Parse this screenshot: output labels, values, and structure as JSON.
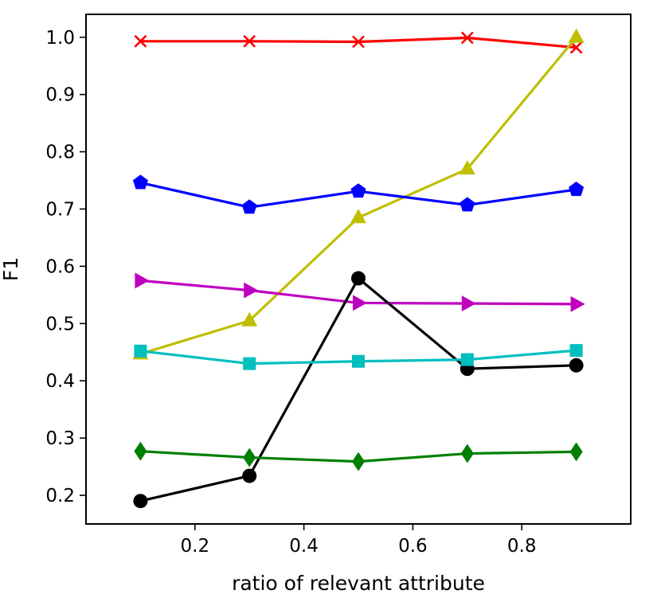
{
  "chart_data": {
    "type": "line",
    "title": "",
    "xlabel": "ratio of relevant attribute",
    "ylabel": "F1",
    "xlim": [
      0.0,
      1.0
    ],
    "ylim": [
      0.15,
      1.04
    ],
    "xticks": [
      0.2,
      0.4,
      0.6,
      0.8
    ],
    "xtick_labels": [
      "0.2",
      "0.4",
      "0.6",
      "0.8"
    ],
    "yticks": [
      0.2,
      0.3,
      0.4,
      0.5,
      0.6,
      0.7,
      0.8,
      0.9,
      1.0
    ],
    "ytick_labels": [
      "0.2",
      "0.3",
      "0.4",
      "0.5",
      "0.6",
      "0.7",
      "0.8",
      "0.9",
      "1.0"
    ],
    "grid": false,
    "x": [
      0.1,
      0.3,
      0.5,
      0.7,
      0.9
    ],
    "series": [
      {
        "id": "red-x",
        "color": "#ff0000",
        "marker": "x",
        "values": [
          0.993,
          0.993,
          0.992,
          0.999,
          0.982
        ]
      },
      {
        "id": "yellow-triangle",
        "color": "#bfbf00",
        "marker": "triangle-up",
        "values": [
          0.447,
          0.505,
          0.685,
          0.77,
          1.0
        ]
      },
      {
        "id": "blue-pentagon",
        "color": "#0000ff",
        "marker": "pentagon",
        "values": [
          0.746,
          0.703,
          0.731,
          0.707,
          0.734
        ]
      },
      {
        "id": "magenta-triangle-right",
        "color": "#bf00bf",
        "marker": "triangle-right",
        "values": [
          0.575,
          0.558,
          0.536,
          0.535,
          0.534
        ]
      },
      {
        "id": "black-circle",
        "color": "#000000",
        "marker": "circle",
        "values": [
          0.19,
          0.234,
          0.579,
          0.421,
          0.427
        ]
      },
      {
        "id": "cyan-square",
        "color": "#00bfbf",
        "marker": "square",
        "values": [
          0.452,
          0.43,
          0.434,
          0.437,
          0.453
        ]
      },
      {
        "id": "green-diamond",
        "color": "#008000",
        "marker": "diamond",
        "values": [
          0.277,
          0.266,
          0.259,
          0.273,
          0.276
        ]
      }
    ]
  }
}
